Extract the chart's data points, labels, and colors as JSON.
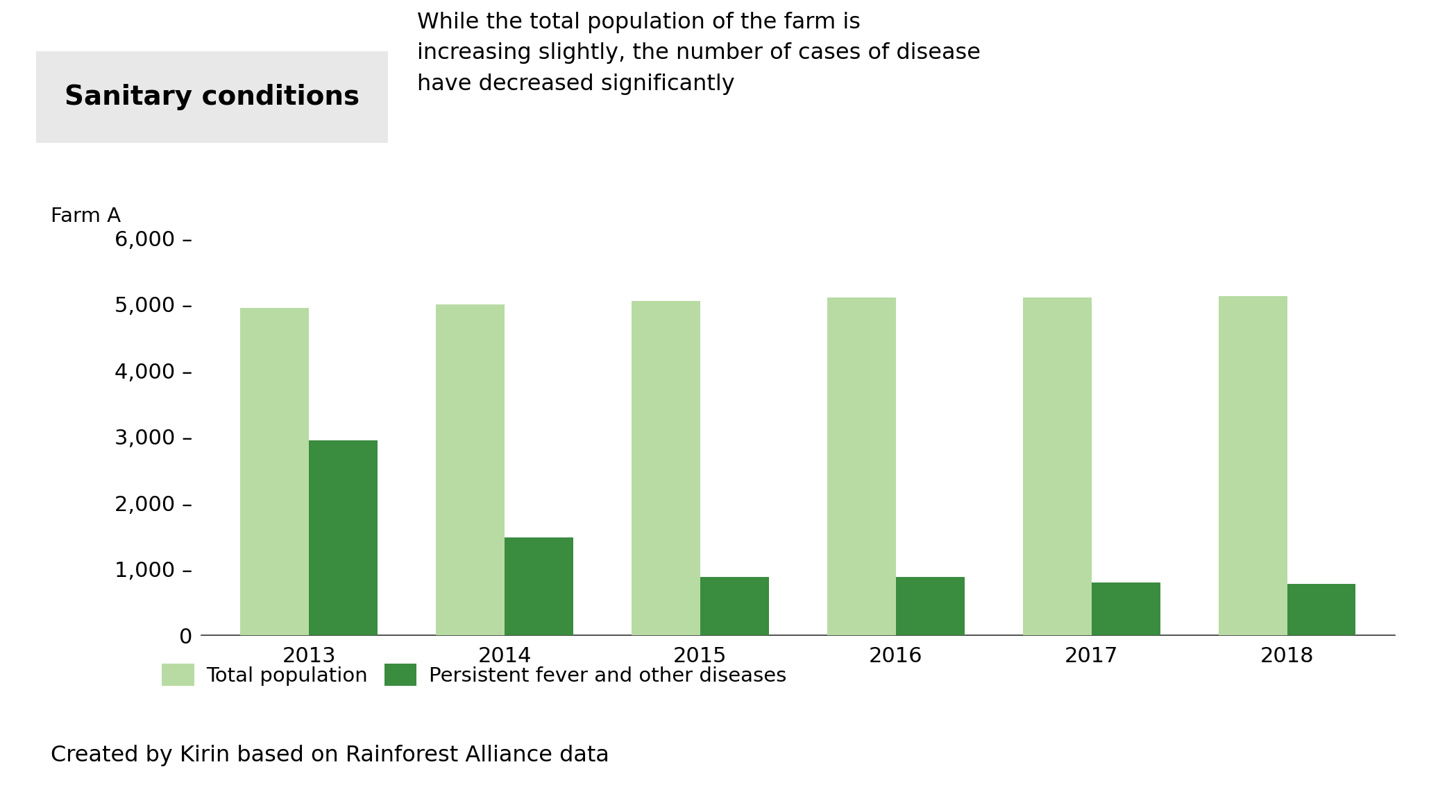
{
  "title_box": "Sanitary conditions",
  "subtitle": "While the total population of the farm is\nincreasing slightly, the number of cases of disease\nhave decreased significantly",
  "ylabel": "Farm A",
  "years": [
    2013,
    2014,
    2015,
    2016,
    2017,
    2018
  ],
  "total_population": [
    4950,
    5000,
    5050,
    5100,
    5100,
    5130
  ],
  "disease_cases": [
    2950,
    1480,
    880,
    880,
    800,
    780
  ],
  "color_population": "#b8dba4",
  "color_disease": "#3a8c3f",
  "ylim": [
    0,
    6000
  ],
  "yticks": [
    0,
    1000,
    2000,
    3000,
    4000,
    5000,
    6000
  ],
  "bar_width": 0.35,
  "legend_population": "Total population",
  "legend_disease": "Persistent fever and other diseases",
  "footer": "Created by Kirin based on Rainforest Alliance data",
  "background_color": "#ffffff",
  "title_box_bg": "#e8e8e8"
}
